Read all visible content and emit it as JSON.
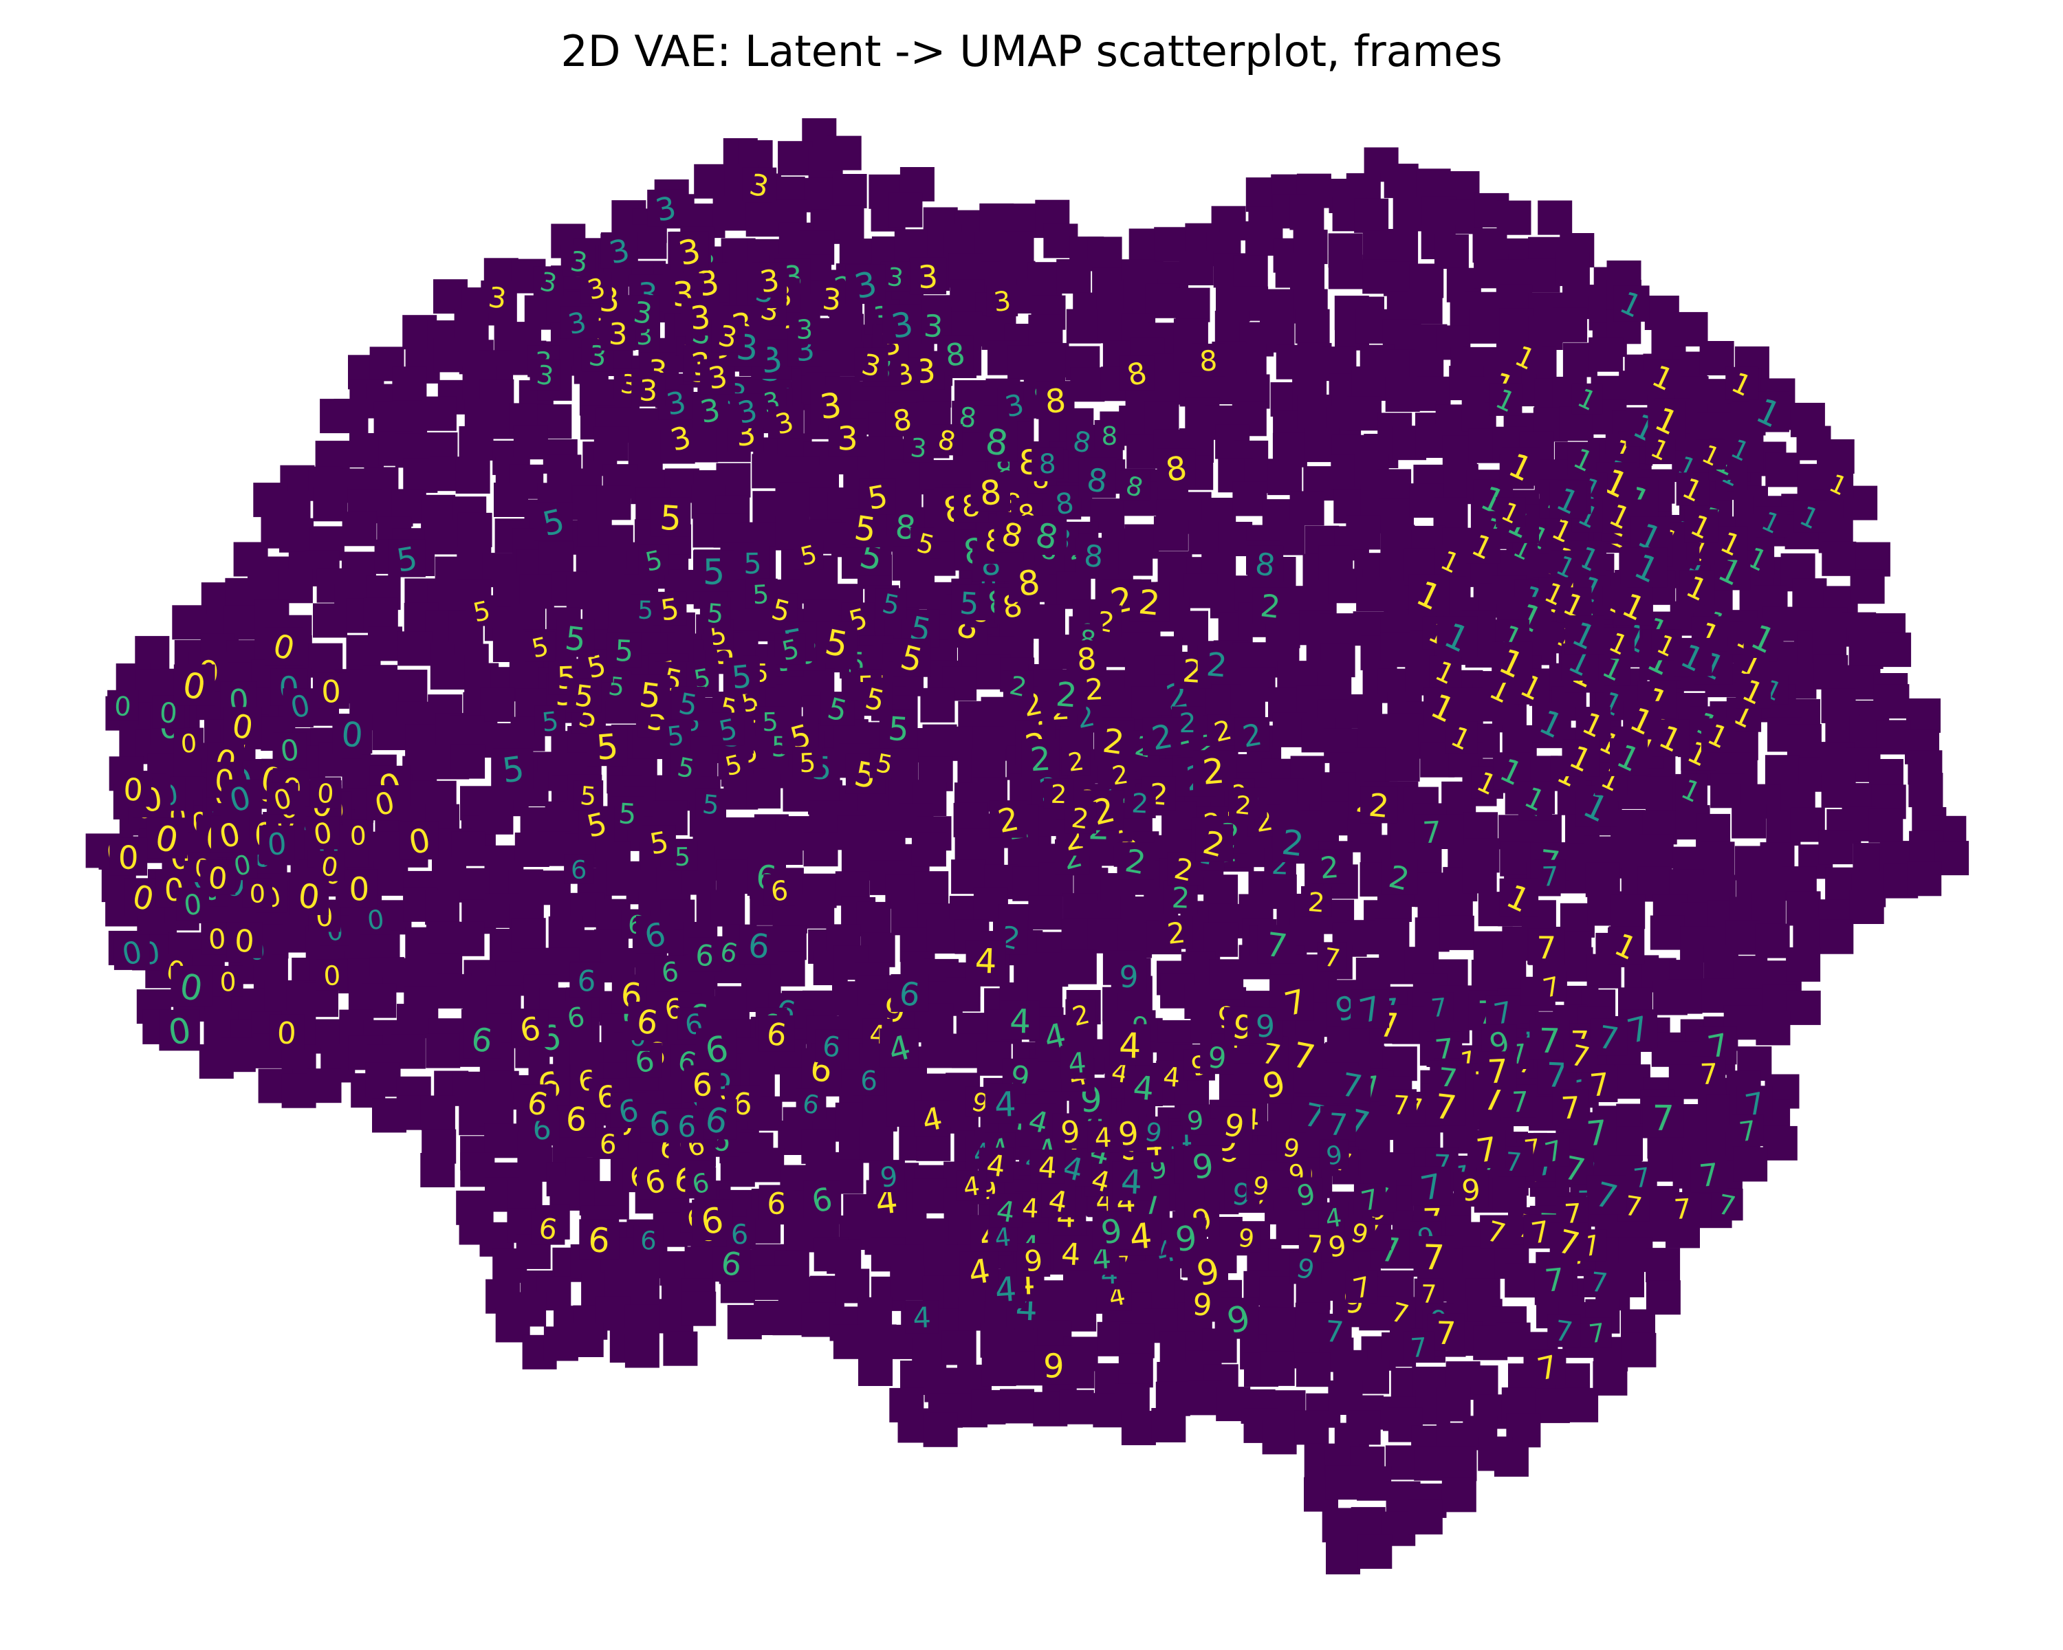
{
  "chart_data": {
    "type": "scatter",
    "title": "2D VAE: Latent -> UMAP scatterplot, frames",
    "xlabel": "",
    "ylabel": "",
    "axes_visible": false,
    "grid": false,
    "legend": "none",
    "marker": "28x28 image thumbnails (viridis colormap)",
    "colors": {
      "frame_background": "#440154",
      "stroke_bright": "#fde725",
      "stroke_mid": "#35b779",
      "stroke_teal": "#21918c"
    },
    "clusters": [
      {
        "label": "0",
        "count": 95,
        "center": [
          185,
          640
        ],
        "spread": [
          95,
          110
        ]
      },
      {
        "label": "1",
        "count": 150,
        "center": [
          1230,
          450
        ],
        "spread": [
          120,
          170
        ]
      },
      {
        "label": "2",
        "count": 75,
        "center": [
          890,
          590
        ],
        "spread": [
          110,
          120
        ]
      },
      {
        "label": "3",
        "count": 85,
        "center": [
          570,
          260
        ],
        "spread": [
          150,
          75
        ]
      },
      {
        "label": "4",
        "count": 65,
        "center": [
          800,
          890
        ],
        "spread": [
          140,
          110
        ]
      },
      {
        "label": "5",
        "count": 80,
        "center": [
          560,
          520
        ],
        "spread": [
          170,
          100
        ]
      },
      {
        "label": "6",
        "count": 80,
        "center": [
          520,
          820
        ],
        "spread": [
          120,
          140
        ]
      },
      {
        "label": "7",
        "count": 105,
        "center": [
          1140,
          870
        ],
        "spread": [
          150,
          170
        ]
      },
      {
        "label": "8",
        "count": 55,
        "center": [
          780,
          390
        ],
        "spread": [
          140,
          120
        ]
      },
      {
        "label": "9",
        "count": 60,
        "center": [
          930,
          880
        ],
        "spread": [
          150,
          120
        ]
      }
    ]
  }
}
